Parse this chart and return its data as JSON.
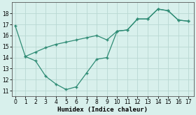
{
  "line1_x": [
    0,
    1,
    2,
    3,
    4,
    5,
    6,
    7,
    8,
    9,
    10,
    11,
    12,
    13,
    14,
    15,
    16,
    17
  ],
  "line1_y": [
    16.9,
    14.1,
    14.5,
    14.9,
    15.2,
    15.4,
    15.6,
    15.8,
    16.0,
    15.6,
    16.4,
    16.5,
    17.5,
    17.5,
    18.4,
    18.25,
    17.4,
    17.3
  ],
  "line2_x": [
    1,
    2,
    3,
    4,
    5,
    6,
    7,
    8,
    9,
    10,
    11,
    12,
    13,
    14,
    15,
    16,
    17
  ],
  "line2_y": [
    14.1,
    13.7,
    12.3,
    11.6,
    11.1,
    11.35,
    12.6,
    13.85,
    14.0,
    16.4,
    16.5,
    17.5,
    17.5,
    18.4,
    18.25,
    17.4,
    17.3
  ],
  "line_color": "#2e8b74",
  "marker": "+",
  "markersize": 3.5,
  "linewidth": 0.9,
  "xlabel": "Humidex (Indice chaleur)",
  "xlim": [
    -0.3,
    17.5
  ],
  "ylim": [
    10.5,
    19.0
  ],
  "yticks": [
    11,
    12,
    13,
    14,
    15,
    16,
    17,
    18
  ],
  "xticks": [
    0,
    1,
    2,
    3,
    4,
    5,
    6,
    7,
    8,
    9,
    10,
    11,
    12,
    13,
    14,
    15,
    16,
    17
  ],
  "bg_color": "#d8f0ec",
  "grid_color": "#b8d8d2",
  "tick_fontsize": 5.5,
  "xlabel_fontsize": 6.5,
  "markeredgewidth": 1.0
}
